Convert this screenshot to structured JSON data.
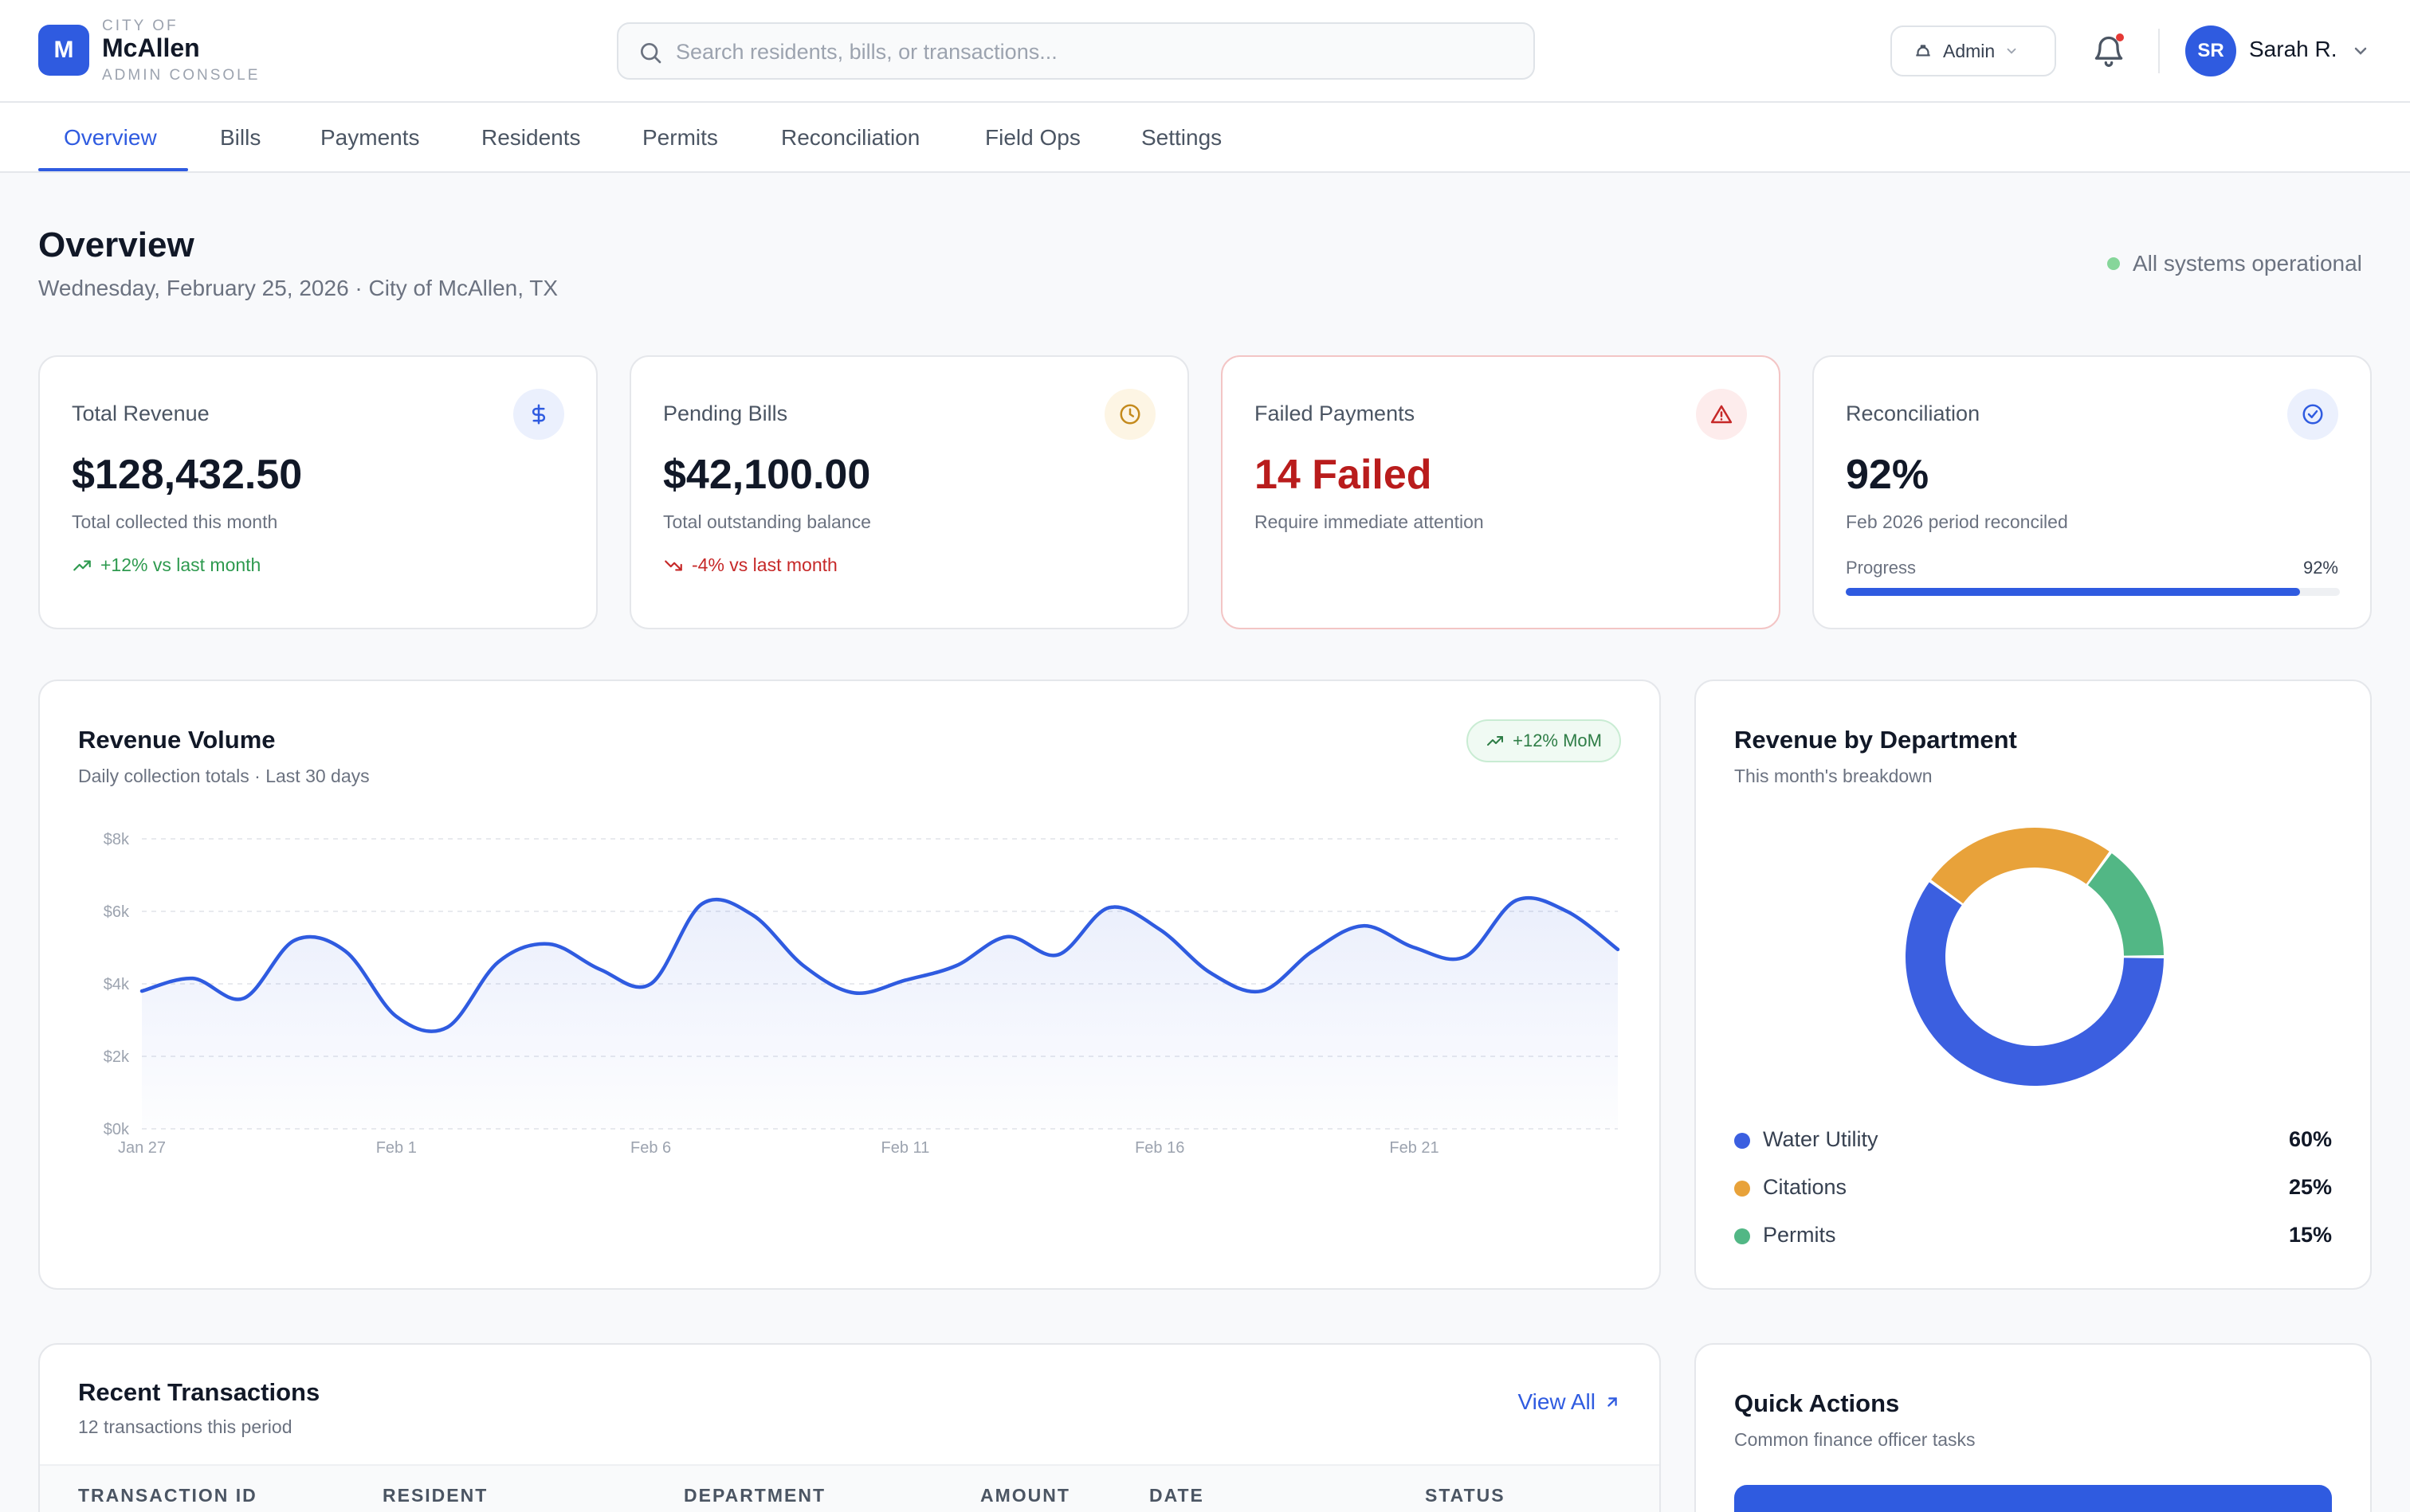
{
  "brand": {
    "logo_letter": "M",
    "small": "CITY OF",
    "name": "McAllen",
    "subtitle": "ADMIN CONSOLE"
  },
  "search": {
    "placeholder": "Search residents, bills, or transactions..."
  },
  "header": {
    "role_label": "Admin",
    "user_initials": "SR",
    "user_name": "Sarah R.",
    "icons": [
      "search-icon",
      "hat-icon",
      "chevron-down-icon",
      "bell-icon"
    ]
  },
  "nav": {
    "tabs": [
      {
        "label": "Overview",
        "active": true
      },
      {
        "label": "Bills"
      },
      {
        "label": "Payments"
      },
      {
        "label": "Residents"
      },
      {
        "label": "Permits"
      },
      {
        "label": "Reconciliation"
      },
      {
        "label": "Field Ops"
      },
      {
        "label": "Settings"
      }
    ]
  },
  "page": {
    "title": "Overview",
    "subtitle": "Wednesday, February 25, 2026 · City of McAllen, TX",
    "status": "All systems operational"
  },
  "kpis": [
    {
      "label": "Total Revenue",
      "value": "$128,432.50",
      "desc": "Total collected this month",
      "trend": "+12% vs last month",
      "icon": "dollar-icon"
    },
    {
      "label": "Pending Bills",
      "value": "$42,100.00",
      "desc": "Total outstanding balance",
      "trend": "-4% vs last month",
      "icon": "clock-icon"
    },
    {
      "label": "Failed Payments",
      "value": "14 Failed",
      "desc": "Require immediate attention",
      "icon": "alert-triangle-icon"
    },
    {
      "label": "Reconciliation",
      "value": "92%",
      "desc": "Feb 2026 period reconciled",
      "progress_label": "Progress",
      "progress_text": "92%",
      "progress": 0.92,
      "icon": "check-circle-icon"
    }
  ],
  "colors": {
    "accent": "#2f5be0",
    "water": "#3b5fe0",
    "citations": "#e8a23a",
    "permits": "#52b785",
    "success": "#2e9a4f",
    "danger": "#b91c1c"
  },
  "revenue_panel": {
    "title": "Revenue Volume",
    "subtitle": "Daily collection totals · Last 30 days",
    "badge": "+12% MoM"
  },
  "department_panel": {
    "title": "Revenue by Department",
    "subtitle": "This month's breakdown",
    "items": [
      {
        "name": "Water Utility",
        "pct": "60%"
      },
      {
        "name": "Citations",
        "pct": "25%"
      },
      {
        "name": "Permits",
        "pct": "15%"
      }
    ]
  },
  "transactions_panel": {
    "title": "Recent Transactions",
    "subtitle": "12 transactions this period",
    "view_all": "View All",
    "columns": [
      "TRANSACTION ID",
      "RESIDENT",
      "DEPARTMENT",
      "AMOUNT",
      "DATE",
      "STATUS"
    ]
  },
  "quick_actions": {
    "title": "Quick Actions",
    "subtitle": "Common finance officer tasks"
  },
  "chart_data": [
    {
      "type": "area",
      "ylim": [
        0,
        8000
      ],
      "yticks": [
        0,
        2000,
        4000,
        6000,
        8000
      ],
      "ytick_labels": [
        "$0k",
        "$2k",
        "$4k",
        "$6k",
        "$8k"
      ],
      "xtick_labels": [
        "Jan 27",
        "Feb 1",
        "Feb 6",
        "Feb 11",
        "Feb 16",
        "Feb 21"
      ],
      "x": [
        "Jan 27",
        "Jan 28",
        "Jan 29",
        "Jan 30",
        "Jan 31",
        "Feb 1",
        "Feb 2",
        "Feb 3",
        "Feb 4",
        "Feb 5",
        "Feb 6",
        "Feb 7",
        "Feb 8",
        "Feb 9",
        "Feb 10",
        "Feb 11",
        "Feb 12",
        "Feb 13",
        "Feb 14",
        "Feb 15",
        "Feb 16",
        "Feb 17",
        "Feb 18",
        "Feb 19",
        "Feb 20",
        "Feb 21",
        "Feb 22",
        "Feb 23",
        "Feb 24",
        "Feb 25"
      ],
      "values": [
        3800,
        4150,
        3600,
        5200,
        4900,
        3100,
        2800,
        4600,
        5100,
        4400,
        4000,
        6200,
        5900,
        4500,
        3750,
        4100,
        4500,
        5300,
        4800,
        6100,
        5500,
        4300,
        3800,
        4900,
        5600,
        5000,
        4750,
        6300,
        6000,
        4950
      ],
      "grid": true
    },
    {
      "type": "pie",
      "style": "donut",
      "categories": [
        "Water Utility",
        "Citations",
        "Permits"
      ],
      "values": [
        60,
        25,
        15
      ]
    }
  ]
}
